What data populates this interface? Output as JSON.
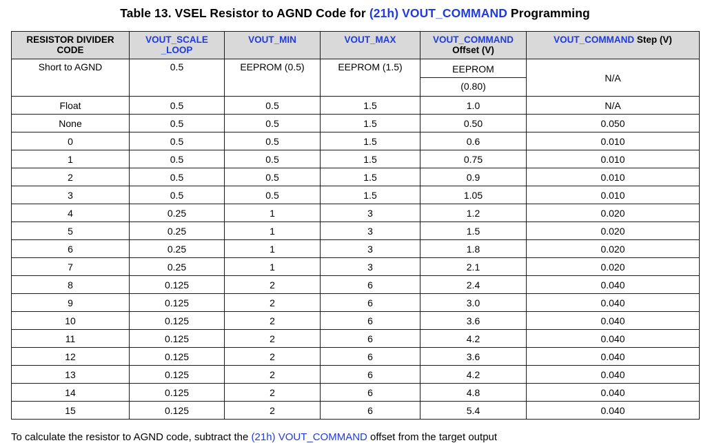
{
  "title": {
    "prefix": "Table 13. VSEL Resistor to AGND Code for ",
    "link": "(21h) VOUT_COMMAND",
    "suffix": " Programming"
  },
  "colors": {
    "link": "#1f3be0",
    "header_bg": "#d9d9d9"
  },
  "headers": {
    "code": [
      "RESISTOR DIVIDER",
      "CODE"
    ],
    "scale_loop": [
      "VOUT_SCALE",
      "_LOOP"
    ],
    "vout_min": "VOUT_MIN",
    "vout_max": "VOUT_MAX",
    "offset_link": "VOUT_COMMAND",
    "offset_rest": "Offset (V)",
    "step_link": "VOUT_COMMAND",
    "step_rest": " Step (V)"
  },
  "first_row": {
    "code": "Short to AGND",
    "scale_loop": "0.5",
    "vout_min": "EEPROM (0.5)",
    "vout_max": "EEPROM (1.5)",
    "offset_top": "EEPROM",
    "offset_bottom": "(0.80)",
    "step": "N/A"
  },
  "rows": [
    {
      "code": "Float",
      "scale": "0.5",
      "min": "0.5",
      "max": "1.5",
      "offset": "1.0",
      "step": "N/A"
    },
    {
      "code": "None",
      "scale": "0.5",
      "min": "0.5",
      "max": "1.5",
      "offset": "0.50",
      "step": "0.050"
    },
    {
      "code": "0",
      "scale": "0.5",
      "min": "0.5",
      "max": "1.5",
      "offset": "0.6",
      "step": "0.010"
    },
    {
      "code": "1",
      "scale": "0.5",
      "min": "0.5",
      "max": "1.5",
      "offset": "0.75",
      "step": "0.010"
    },
    {
      "code": "2",
      "scale": "0.5",
      "min": "0.5",
      "max": "1.5",
      "offset": "0.9",
      "step": "0.010"
    },
    {
      "code": "3",
      "scale": "0.5",
      "min": "0.5",
      "max": "1.5",
      "offset": "1.05",
      "step": "0.010"
    },
    {
      "code": "4",
      "scale": "0.25",
      "min": "1",
      "max": "3",
      "offset": "1.2",
      "step": "0.020"
    },
    {
      "code": "5",
      "scale": "0.25",
      "min": "1",
      "max": "3",
      "offset": "1.5",
      "step": "0.020"
    },
    {
      "code": "6",
      "scale": "0.25",
      "min": "1",
      "max": "3",
      "offset": "1.8",
      "step": "0.020"
    },
    {
      "code": "7",
      "scale": "0.25",
      "min": "1",
      "max": "3",
      "offset": "2.1",
      "step": "0.020"
    },
    {
      "code": "8",
      "scale": "0.125",
      "min": "2",
      "max": "6",
      "offset": "2.4",
      "step": "0.040"
    },
    {
      "code": "9",
      "scale": "0.125",
      "min": "2",
      "max": "6",
      "offset": "3.0",
      "step": "0.040"
    },
    {
      "code": "10",
      "scale": "0.125",
      "min": "2",
      "max": "6",
      "offset": "3.6",
      "step": "0.040"
    },
    {
      "code": "11",
      "scale": "0.125",
      "min": "2",
      "max": "6",
      "offset": "4.2",
      "step": "0.040"
    },
    {
      "code": "12",
      "scale": "0.125",
      "min": "2",
      "max": "6",
      "offset": "3.6",
      "step": "0.040"
    },
    {
      "code": "13",
      "scale": "0.125",
      "min": "2",
      "max": "6",
      "offset": "4.2",
      "step": "0.040"
    },
    {
      "code": "14",
      "scale": "0.125",
      "min": "2",
      "max": "6",
      "offset": "4.8",
      "step": "0.040"
    },
    {
      "code": "15",
      "scale": "0.125",
      "min": "2",
      "max": "6",
      "offset": "5.4",
      "step": "0.040"
    }
  ],
  "footer": {
    "prefix": "To calculate the resistor to AGND code, subtract the ",
    "link": "(21h) VOUT_COMMAND",
    "suffix": " offset from the target output"
  }
}
